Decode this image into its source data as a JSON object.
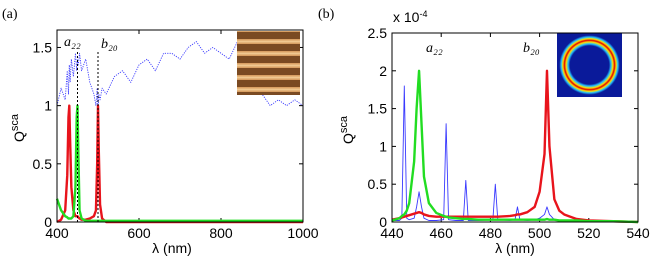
{
  "chart_data": [
    {
      "type": "line",
      "panel_label": "(a)",
      "ylabel": "Q",
      "ylabel_superscript": "sca",
      "xlabel": "λ (nm)",
      "annotations": [
        "a₂₂",
        "b₂₀"
      ],
      "vlines": [
        450,
        500
      ],
      "xlim": [
        400,
        1000
      ],
      "xticks": [
        400,
        600,
        800,
        1000
      ],
      "ylim": [
        0,
        1.65
      ],
      "yticks": [
        0,
        0.5,
        1,
        1.5
      ],
      "x": [
        400,
        410,
        420,
        425,
        428,
        430,
        432,
        435,
        440,
        445,
        448,
        450,
        452,
        455,
        460,
        470,
        480,
        490,
        495,
        498,
        500,
        502,
        505,
        510,
        520,
        540,
        560,
        580,
        600,
        620,
        640,
        660,
        680,
        700,
        720,
        740,
        760,
        780,
        800,
        820,
        840,
        860,
        880,
        900,
        920,
        940,
        960,
        980,
        1000
      ],
      "series": [
        {
          "color": "#3a3aff",
          "linestyle": "dotted",
          "values": [
            1.0,
            1.15,
            1.05,
            1.3,
            1.1,
            1.35,
            1.2,
            1.4,
            1.25,
            1.45,
            1.3,
            1.4,
            1.35,
            1.45,
            1.3,
            1.4,
            1.2,
            1.1,
            1.0,
            1.15,
            0.95,
            1.1,
            1.05,
            1.15,
            1.1,
            1.25,
            1.3,
            1.2,
            1.35,
            1.4,
            1.3,
            1.45,
            1.45,
            1.4,
            1.5,
            1.55,
            1.45,
            1.5,
            1.45,
            1.4,
            1.55,
            1.3,
            1.15,
            1.1,
            1.0,
            1.05,
            1.0,
            1.05,
            1.0
          ]
        },
        {
          "color": "#e8141c",
          "linestyle": "solid",
          "values": [
            0,
            0.02,
            0.1,
            0.4,
            0.9,
            1.0,
            0.7,
            0.3,
            0.1,
            0.05,
            0.05,
            0.05,
            0.04,
            0.03,
            0.02,
            0.02,
            0.03,
            0.05,
            0.1,
            0.5,
            1.0,
            0.6,
            0.15,
            0.03,
            0,
            0,
            0,
            0,
            0,
            0,
            0,
            0,
            0,
            0,
            0,
            0,
            0,
            0,
            0,
            0,
            0,
            0,
            0,
            0,
            0,
            0,
            0,
            0,
            0
          ]
        },
        {
          "color": "#22dd22",
          "linestyle": "solid",
          "values": [
            0.2,
            0.1,
            0.05,
            0.04,
            0.03,
            0.03,
            0.03,
            0.03,
            0.05,
            0.3,
            0.9,
            1.0,
            0.6,
            0.1,
            0.03,
            0.01,
            0.01,
            0.01,
            0.01,
            0.01,
            0.01,
            0.01,
            0.01,
            0.01,
            0.01,
            0.01,
            0.01,
            0.01,
            0.01,
            0.01,
            0.01,
            0.01,
            0.01,
            0.01,
            0.01,
            0.01,
            0.01,
            0.01,
            0.01,
            0.01,
            0.01,
            0.01,
            0.01,
            0.01,
            0.01,
            0.01,
            0.01,
            0.01,
            0.01
          ]
        }
      ]
    },
    {
      "type": "line",
      "panel_label": "(b)",
      "ylabel": "Q",
      "ylabel_superscript": "sca",
      "xlabel": "λ (nm)",
      "axis_multiplier": "x 10",
      "axis_multiplier_exponent": "-4",
      "annotations": [
        "a₂₂",
        "b₂₀"
      ],
      "xlim": [
        440,
        540
      ],
      "xticks": [
        440,
        460,
        480,
        500,
        520,
        540
      ],
      "ylim": [
        0,
        2.5
      ],
      "yticks": [
        0,
        0.5,
        1,
        1.5,
        2,
        2.5
      ],
      "x": [
        440,
        443,
        444,
        445,
        446,
        447,
        449,
        450,
        451,
        452,
        453,
        455,
        458,
        461,
        462,
        463,
        466,
        469,
        470,
        471,
        475,
        481,
        482,
        483,
        488,
        490,
        491,
        492,
        495,
        498,
        500,
        502,
        503,
        504,
        506,
        508,
        510,
        515,
        520,
        530,
        540
      ],
      "series": [
        {
          "color": "#3a3aff",
          "linestyle": "thin",
          "values": [
            0.02,
            0.02,
            0.05,
            1.8,
            0.05,
            0.03,
            0.05,
            0.2,
            0.4,
            0.2,
            0.05,
            0.02,
            0.02,
            0.03,
            1.3,
            0.03,
            0.02,
            0.02,
            0.55,
            0.02,
            0.02,
            0.03,
            0.5,
            0.03,
            0.02,
            0.03,
            0.2,
            0.03,
            0.02,
            0.03,
            0.05,
            0.1,
            0.2,
            0.1,
            0.03,
            0.02,
            0.02,
            0.01,
            0.01,
            0,
            0
          ]
        },
        {
          "color": "#e8141c",
          "linestyle": "solid",
          "values": [
            0.03,
            0.05,
            0.06,
            0.07,
            0.08,
            0.09,
            0.11,
            0.12,
            0.13,
            0.12,
            0.1,
            0.08,
            0.07,
            0.07,
            0.07,
            0.07,
            0.07,
            0.07,
            0.07,
            0.07,
            0.07,
            0.07,
            0.07,
            0.07,
            0.08,
            0.09,
            0.1,
            0.1,
            0.13,
            0.2,
            0.4,
            0.9,
            2.0,
            1.0,
            0.3,
            0.15,
            0.1,
            0.04,
            0.02,
            0.01,
            0
          ]
        },
        {
          "color": "#22dd22",
          "linestyle": "solid",
          "values": [
            0.02,
            0.05,
            0.08,
            0.1,
            0.15,
            0.25,
            0.8,
            1.5,
            2.0,
            1.3,
            0.6,
            0.25,
            0.12,
            0.08,
            0.07,
            0.06,
            0.05,
            0.04,
            0.04,
            0.04,
            0.03,
            0.03,
            0.03,
            0.03,
            0.03,
            0.03,
            0.03,
            0.03,
            0.03,
            0.03,
            0.03,
            0.03,
            0.04,
            0.03,
            0.03,
            0.02,
            0.02,
            0.02,
            0.01,
            0.01,
            0
          ]
        }
      ]
    }
  ]
}
